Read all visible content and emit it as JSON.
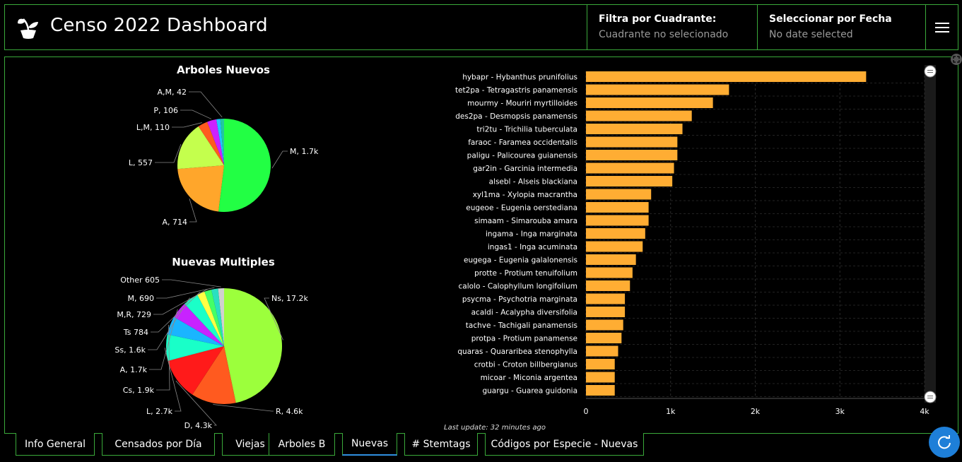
{
  "header": {
    "title": "Censo 2022 Dashboard",
    "filter_quadrant": {
      "label": "Filtra por Cuadrante:",
      "value": "Cuadrante no selecionado"
    },
    "filter_date": {
      "label": "Seleccionar por Fecha",
      "value": "No date selected"
    }
  },
  "charts": {
    "pie1_title": "Arboles Nuevos",
    "pie2_title": "Nuevas Multiples"
  },
  "chart_data": [
    {
      "type": "pie",
      "title": "Arboles Nuevos",
      "slices": [
        {
          "label": "M",
          "value": 1700,
          "display": "M, 1.7k",
          "color": "#22ff44"
        },
        {
          "label": "A",
          "value": 714,
          "display": "A, 714",
          "color": "#ffa62b"
        },
        {
          "label": "L",
          "value": 557,
          "display": "L, 557",
          "color": "#c4ff4d"
        },
        {
          "label": "L,M",
          "value": 110,
          "display": "L,M, 110",
          "color": "#ff5a1f"
        },
        {
          "label": "P",
          "value": 106,
          "display": "P, 106",
          "color": "#cc22ff"
        },
        {
          "label": "",
          "value": 45,
          "display": "",
          "color": "#1ec7ff"
        },
        {
          "label": "A,M",
          "value": 42,
          "display": "A,M, 42",
          "color": "#22c7a0"
        }
      ]
    },
    {
      "type": "pie",
      "title": "Nuevas Multiples",
      "slices": [
        {
          "label": "Ns",
          "value": 17200,
          "display": "Ns, 17.2k",
          "color": "#9cff3c"
        },
        {
          "label": "R",
          "value": 4600,
          "display": "R, 4.6k",
          "color": "#ff5a1f"
        },
        {
          "label": "D",
          "value": 4300,
          "display": "D, 4.3k",
          "color": "#ff1a1a"
        },
        {
          "label": "L",
          "value": 2700,
          "display": "L, 2.7k",
          "color": "#19ffc8"
        },
        {
          "label": "Cs",
          "value": 1900,
          "display": "Cs, 1.9k",
          "color": "#1ab5ff"
        },
        {
          "label": "A",
          "value": 1700,
          "display": "A, 1.7k",
          "color": "#c822ff"
        },
        {
          "label": "Ss",
          "value": 1600,
          "display": "Ss, 1.6k",
          "color": "#1affc8"
        },
        {
          "label": "Ts",
          "value": 784,
          "display": "Ts 784",
          "color": "#ffff44"
        },
        {
          "label": "M,R",
          "value": 729,
          "display": "M,R, 729",
          "color": "#44ff66"
        },
        {
          "label": "M",
          "value": 690,
          "display": "M, 690",
          "color": "#2ae0c0"
        },
        {
          "label": "Other",
          "value": 605,
          "display": "Other 605",
          "color": "#d0d0d0"
        }
      ]
    },
    {
      "type": "bar",
      "orientation": "horizontal",
      "categories": [
        "hybapr - Hybanthus prunifolius",
        "tet2pa - Tetragastris panamensis",
        "mourmy - Mouriri myrtilloides",
        "des2pa - Desmopsis panamensis",
        "tri2tu - Trichilia tuberculata",
        "faraoc - Faramea occidentalis",
        "paligu - Palicourea guianensis",
        "gar2in - Garcinia intermedia",
        "alsebl - Alseis blackiana",
        "xyl1ma - Xylopia macrantha",
        "eugeoe - Eugenia oerstediana",
        "simaam - Simarouba amara",
        "ingama - Inga marginata",
        "ingas1 - Inga acuminata",
        "eugega - Eugenia galalonensis",
        "protte - Protium tenuifolium",
        "calolo - Calophyllum longifolium",
        "psycma - Psychotria marginata",
        "acaldi - Acalypha diversifolia",
        "tachve - Tachigali panamensis",
        "protpa - Protium panamense",
        "quaras - Quararibea stenophylla",
        "crotbi - Croton billbergianus",
        "micoar - Miconia argentea",
        "guargu - Guarea guidonia"
      ],
      "values": [
        3310,
        1690,
        1500,
        1250,
        1140,
        1080,
        1080,
        1040,
        1020,
        770,
        740,
        740,
        700,
        670,
        590,
        550,
        520,
        460,
        460,
        440,
        420,
        380,
        340,
        340,
        340
      ],
      "xticks": [
        "0",
        "1k",
        "2k",
        "3k",
        "4k"
      ],
      "xlim": [
        0,
        4000
      ],
      "bar_color": "#ffad33"
    }
  ],
  "footer": {
    "last_update": "Last update: 32 minutes ago"
  },
  "tabs": [
    {
      "label": "Info General"
    },
    {
      "label": "Censados por Día"
    },
    {
      "label": "Viejas"
    },
    {
      "label": "Arboles B"
    },
    {
      "label": "Nuevas"
    },
    {
      "label": "# Stemtags"
    },
    {
      "label": "Códigos por Especie - Nuevas"
    }
  ]
}
